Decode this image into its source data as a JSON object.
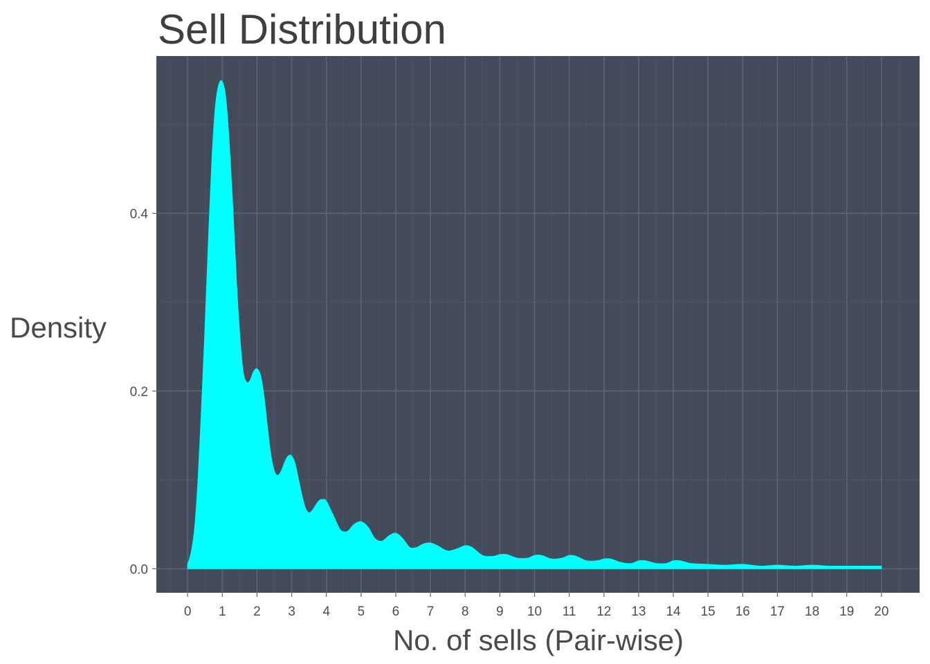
{
  "chart_data": {
    "type": "area",
    "title": "Sell Distribution",
    "xlabel": "No. of sells (Pair-wise)",
    "ylabel": "Density",
    "x_ticks": [
      "0",
      "1",
      "2",
      "3",
      "4",
      "5",
      "6",
      "7",
      "8",
      "9",
      "10",
      "11",
      "12",
      "13",
      "14",
      "15",
      "16",
      "17",
      "18",
      "19",
      "20"
    ],
    "y_ticks": [
      "0.0",
      "0.2",
      "0.4"
    ],
    "xlim": [
      -0.9,
      21.1
    ],
    "ylim": [
      -0.027,
      0.577
    ],
    "grid": true,
    "legend": "none",
    "colors": {
      "panel_background": "#444b5a",
      "major_grid": "#5a6676",
      "minor_grid": "#4c5464",
      "fill": "#00ffff"
    },
    "series": [
      {
        "x": [
          0,
          0.1,
          0.2,
          0.3,
          0.4,
          0.5,
          0.6,
          0.7,
          0.8,
          0.9,
          1.0,
          1.1,
          1.2,
          1.3,
          1.4,
          1.5,
          1.6,
          1.7,
          1.8,
          1.9,
          2.0,
          2.1,
          2.2,
          2.3,
          2.4,
          2.5,
          2.6,
          2.7,
          2.8,
          2.9,
          3.0,
          3.1,
          3.2,
          3.3,
          3.4,
          3.5,
          3.6,
          3.7,
          3.8,
          3.9,
          4.0,
          4.2,
          4.4,
          4.6,
          4.8,
          5.0,
          5.2,
          5.4,
          5.6,
          5.8,
          6.0,
          6.2,
          6.4,
          6.6,
          6.8,
          7.0,
          7.2,
          7.5,
          7.8,
          8.0,
          8.2,
          8.5,
          8.8,
          9.0,
          9.2,
          9.5,
          9.8,
          10.0,
          10.2,
          10.5,
          10.8,
          11.0,
          11.2,
          11.5,
          11.8,
          12.0,
          12.2,
          12.5,
          12.8,
          13.0,
          13.2,
          13.5,
          13.8,
          14.0,
          14.2,
          14.5,
          15.0,
          15.5,
          16.0,
          16.5,
          17.0,
          17.5,
          18.0,
          18.5,
          19.0,
          19.5,
          20.0
        ],
        "y": [
          0.005,
          0.018,
          0.045,
          0.1,
          0.18,
          0.27,
          0.37,
          0.46,
          0.52,
          0.545,
          0.548,
          0.53,
          0.48,
          0.41,
          0.33,
          0.265,
          0.222,
          0.21,
          0.212,
          0.222,
          0.225,
          0.218,
          0.195,
          0.16,
          0.128,
          0.11,
          0.105,
          0.11,
          0.12,
          0.127,
          0.127,
          0.118,
          0.1,
          0.082,
          0.068,
          0.063,
          0.066,
          0.072,
          0.077,
          0.078,
          0.076,
          0.06,
          0.044,
          0.042,
          0.05,
          0.053,
          0.047,
          0.034,
          0.031,
          0.037,
          0.04,
          0.034,
          0.024,
          0.024,
          0.028,
          0.029,
          0.026,
          0.02,
          0.023,
          0.026,
          0.024,
          0.015,
          0.014,
          0.016,
          0.016,
          0.012,
          0.012,
          0.015,
          0.015,
          0.011,
          0.012,
          0.015,
          0.014,
          0.009,
          0.009,
          0.011,
          0.011,
          0.007,
          0.006,
          0.009,
          0.009,
          0.006,
          0.006,
          0.009,
          0.009,
          0.006,
          0.005,
          0.004,
          0.005,
          0.003,
          0.004,
          0.003,
          0.004,
          0.003,
          0.003,
          0.003,
          0.003
        ]
      }
    ]
  }
}
